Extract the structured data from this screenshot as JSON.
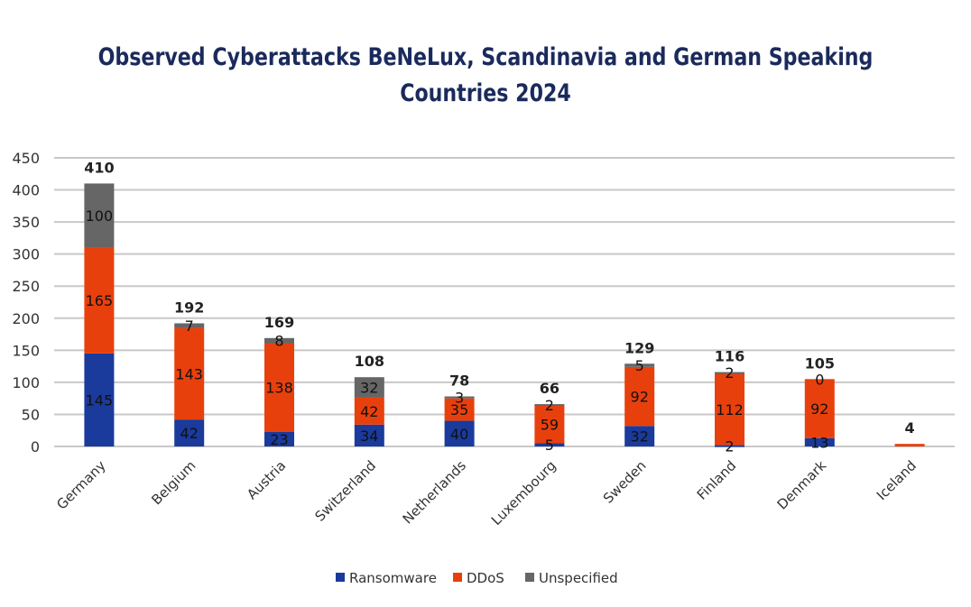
{
  "chart_data": {
    "type": "bar",
    "stacked": true,
    "title_lines": [
      "Observed Cyberattacks BeNeLux, Scandinavia and German Speaking",
      "Countries 2024"
    ],
    "categories": [
      "Germany",
      "Belgium",
      "Austria",
      "Switzerland",
      "Netherlands",
      "Luxembourg",
      "Sweden",
      "Finland",
      "Denmark",
      "Iceland"
    ],
    "series": [
      {
        "name": "Ransomware",
        "color": "#1a3a9c",
        "values": [
          145,
          42,
          23,
          34,
          40,
          5,
          32,
          2,
          13,
          null
        ]
      },
      {
        "name": "DDoS",
        "color": "#e8400c",
        "values": [
          165,
          143,
          138,
          42,
          35,
          59,
          92,
          112,
          92,
          4
        ]
      },
      {
        "name": "Unspecified",
        "color": "#666666",
        "values": [
          100,
          7,
          8,
          32,
          3,
          2,
          5,
          2,
          0,
          null
        ]
      }
    ],
    "totals": [
      410,
      192,
      169,
      108,
      78,
      66,
      129,
      116,
      105,
      4
    ],
    "ylim": [
      0,
      450
    ],
    "yticks": [
      0,
      50,
      100,
      150,
      200,
      250,
      300,
      350,
      400,
      450
    ],
    "grid": true,
    "legend_position": "bottom",
    "xlabel": "",
    "ylabel": ""
  }
}
